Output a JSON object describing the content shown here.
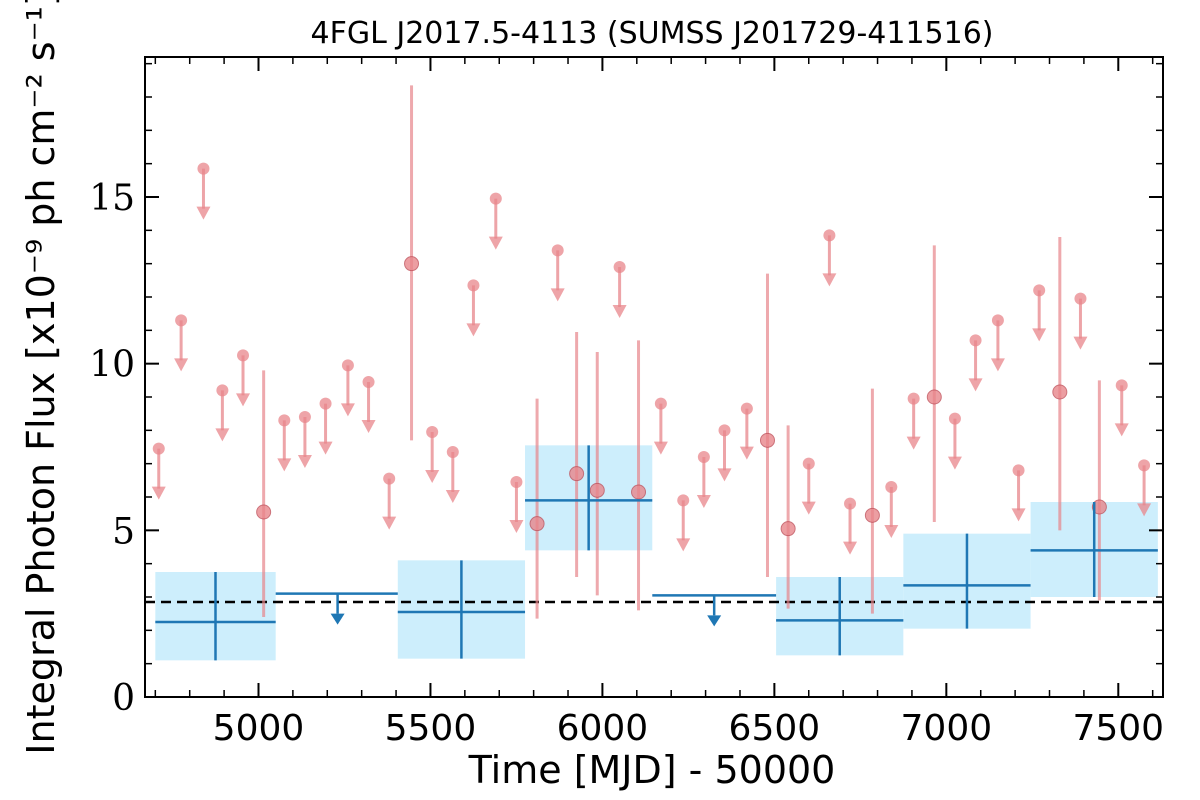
{
  "chart_data": {
    "type": "scatter",
    "title": "4FGL J2017.5-4113 (SUMSS J201729-411516)",
    "xlabel": "Time [MJD] - 50000",
    "ylabel": "Integral Photon Flux [x10⁻⁹ ph cm⁻² s⁻¹]",
    "xlim": [
      4670,
      7630
    ],
    "ylim": [
      0,
      19.2
    ],
    "x_ticks": [
      5000,
      5500,
      6000,
      6500,
      7000,
      7500
    ],
    "y_ticks": [
      0,
      5,
      10,
      15
    ],
    "grid": false,
    "mean_flux": 2.85,
    "colors": {
      "short_bin": "#e8868b",
      "long_bin": "#1f77b4",
      "long_bin_band": "#cdeefc",
      "mean_line": "#000000"
    },
    "long_bin_detections": [
      {
        "x_start": 4700,
        "x_end": 5050,
        "x": 4875,
        "y": 2.25,
        "y_low": 1.1,
        "y_high": 3.75
      },
      {
        "x_start": 5405,
        "x_end": 5775,
        "x": 5590,
        "y": 2.55,
        "y_low": 1.15,
        "y_high": 4.1
      },
      {
        "x_start": 5775,
        "x_end": 6145,
        "x": 5960,
        "y": 5.9,
        "y_low": 4.4,
        "y_high": 7.55
      },
      {
        "x_start": 6505,
        "x_end": 6875,
        "x": 6690,
        "y": 2.3,
        "y_low": 1.25,
        "y_high": 3.6
      },
      {
        "x_start": 6875,
        "x_end": 7245,
        "x": 7060,
        "y": 3.35,
        "y_low": 2.05,
        "y_high": 4.9
      },
      {
        "x_start": 7245,
        "x_end": 7615,
        "x": 7430,
        "y": 4.4,
        "y_low": 3.0,
        "y_high": 5.85
      }
    ],
    "long_bin_upper_limits": [
      {
        "x_start": 5050,
        "x_end": 5405,
        "x": 5230,
        "y": 3.1
      },
      {
        "x_start": 6145,
        "x_end": 6505,
        "x": 6325,
        "y": 3.05
      }
    ],
    "short_bin_detections": [
      {
        "x": 5015,
        "y": 5.55,
        "y_low": 2.4,
        "y_high": 9.8
      },
      {
        "x": 5445,
        "y": 13.0,
        "y_low": 7.7,
        "y_high": 18.35
      },
      {
        "x": 5810,
        "y": 5.2,
        "y_low": 2.35,
        "y_high": 8.95
      },
      {
        "x": 5925,
        "y": 6.7,
        "y_low": 3.6,
        "y_high": 10.95
      },
      {
        "x": 5985,
        "y": 6.2,
        "y_low": 3.05,
        "y_high": 10.35
      },
      {
        "x": 6105,
        "y": 6.15,
        "y_low": 2.6,
        "y_high": 10.7
      },
      {
        "x": 6480,
        "y": 7.7,
        "y_low": 3.6,
        "y_high": 12.7
      },
      {
        "x": 6540,
        "y": 5.05,
        "y_low": 2.65,
        "y_high": 8.15
      },
      {
        "x": 6785,
        "y": 5.45,
        "y_low": 2.5,
        "y_high": 9.25
      },
      {
        "x": 6965,
        "y": 9.0,
        "y_low": 5.25,
        "y_high": 13.55
      },
      {
        "x": 7330,
        "y": 9.15,
        "y_low": 5.0,
        "y_high": 13.8
      },
      {
        "x": 7445,
        "y": 5.7,
        "y_low": 2.9,
        "y_high": 9.5
      }
    ],
    "short_bin_upper_limits": [
      {
        "x": 4710,
        "y": 7.45
      },
      {
        "x": 4775,
        "y": 11.3
      },
      {
        "x": 4840,
        "y": 15.85
      },
      {
        "x": 4895,
        "y": 9.2
      },
      {
        "x": 4955,
        "y": 10.25
      },
      {
        "x": 5075,
        "y": 8.3
      },
      {
        "x": 5135,
        "y": 8.4
      },
      {
        "x": 5195,
        "y": 8.8
      },
      {
        "x": 5260,
        "y": 9.95
      },
      {
        "x": 5320,
        "y": 9.45
      },
      {
        "x": 5380,
        "y": 6.55
      },
      {
        "x": 5505,
        "y": 7.95
      },
      {
        "x": 5565,
        "y": 7.35
      },
      {
        "x": 5625,
        "y": 12.35
      },
      {
        "x": 5690,
        "y": 14.95
      },
      {
        "x": 5750,
        "y": 6.45
      },
      {
        "x": 5870,
        "y": 13.4
      },
      {
        "x": 6050,
        "y": 12.9
      },
      {
        "x": 6170,
        "y": 8.8
      },
      {
        "x": 6235,
        "y": 5.9
      },
      {
        "x": 6295,
        "y": 7.2
      },
      {
        "x": 6355,
        "y": 8.0
      },
      {
        "x": 6420,
        "y": 8.65
      },
      {
        "x": 6600,
        "y": 7.0
      },
      {
        "x": 6660,
        "y": 13.85
      },
      {
        "x": 6720,
        "y": 5.8
      },
      {
        "x": 6840,
        "y": 6.3
      },
      {
        "x": 6905,
        "y": 8.95
      },
      {
        "x": 7025,
        "y": 8.35
      },
      {
        "x": 7085,
        "y": 10.7
      },
      {
        "x": 7150,
        "y": 11.3
      },
      {
        "x": 7210,
        "y": 6.8
      },
      {
        "x": 7270,
        "y": 12.2
      },
      {
        "x": 7390,
        "y": 11.95
      },
      {
        "x": 7510,
        "y": 9.35
      },
      {
        "x": 7575,
        "y": 6.95
      }
    ]
  }
}
